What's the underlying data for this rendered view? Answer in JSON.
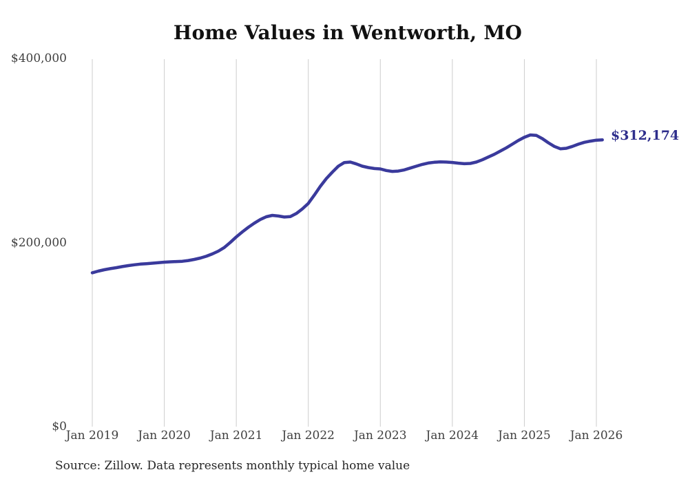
{
  "title": "Home Values in Wentworth, MO",
  "source_note": "Source: Zillow. Data represents monthly typical home value",
  "end_label": "$312,174",
  "colors": {
    "line": "#3a3a9c",
    "end_label": "#2e2e8c",
    "gridline": "#cccccc",
    "title": "#111111",
    "axis_label": "#3f3f3f",
    "background": "#ffffff"
  },
  "chart_data": {
    "type": "line",
    "title": "Home Values in Wentworth, MO",
    "xlabel": "",
    "ylabel": "",
    "ylim": [
      0,
      400000
    ],
    "grid": "vertical-only",
    "legend": "none",
    "frequency": "monthly",
    "x_start": "Jan 2019",
    "x_end": "Feb 2026",
    "x_tick_labels": [
      "Jan 2019",
      "Jan 2020",
      "Jan 2021",
      "Jan 2022",
      "Jan 2023",
      "Jan 2024",
      "Jan 2025",
      "Jan 2026"
    ],
    "y_tick_labels": [
      "$0",
      "$200,000",
      "$400,000"
    ],
    "end_value": 312174,
    "end_value_label": "$312,174",
    "series": [
      {
        "name": "Typical home value",
        "values": [
          167500,
          169300,
          170800,
          172000,
          173000,
          174200,
          175300,
          176200,
          176900,
          177400,
          177900,
          178400,
          179000,
          179400,
          179700,
          180000,
          180800,
          182000,
          183500,
          185500,
          188000,
          191000,
          195000,
          200500,
          206500,
          212000,
          217000,
          221500,
          225500,
          228500,
          230000,
          229300,
          228200,
          228600,
          232000,
          237000,
          243000,
          252000,
          261500,
          270000,
          277000,
          283500,
          287500,
          288000,
          286000,
          283500,
          282000,
          281000,
          280500,
          278800,
          277800,
          278200,
          279500,
          281500,
          283500,
          285500,
          287000,
          287800,
          288200,
          288000,
          287600,
          286800,
          286200,
          286500,
          288000,
          290500,
          293500,
          296500,
          300000,
          303500,
          307500,
          311500,
          315000,
          317500,
          317000,
          313500,
          309000,
          305000,
          302500,
          303000,
          305000,
          307500,
          309500,
          310800,
          311800,
          312174
        ]
      }
    ]
  }
}
